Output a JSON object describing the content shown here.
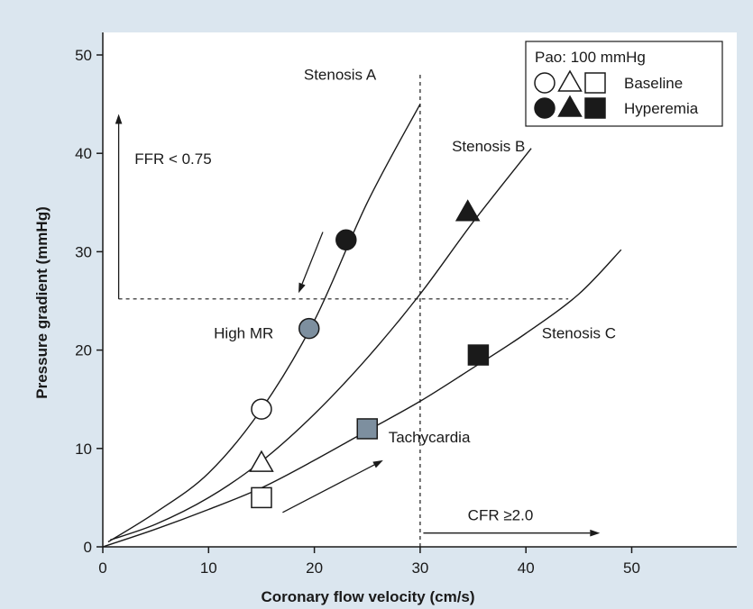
{
  "chart_data": {
    "type": "scatter",
    "xlabel": "Coronary flow velocity (cm/s)",
    "ylabel": "Pressure gradient (mmHg)",
    "xlim": [
      0,
      60
    ],
    "ylim": [
      0,
      55
    ],
    "x_ticks": [
      0,
      10,
      20,
      30,
      40,
      50
    ],
    "y_ticks": [
      0,
      10,
      20,
      30,
      40,
      50
    ],
    "grid": false,
    "legend": {
      "placement": "top-right",
      "title": "Pao: 100 mmHg",
      "entries": [
        {
          "label": "Baseline",
          "fill": "open",
          "markers": [
            "circle",
            "triangle",
            "square"
          ]
        },
        {
          "label": "Hyperemia",
          "fill": "filled",
          "markers": [
            "circle",
            "triangle",
            "square"
          ]
        }
      ]
    },
    "series": [
      {
        "name": "Stenosis A",
        "marker": "circle",
        "curve_x": [
          0.5,
          5,
          10,
          15,
          20,
          25,
          30
        ],
        "curve_y": [
          0.5,
          3.5,
          7.5,
          14,
          23,
          35,
          45
        ],
        "points": [
          {
            "x": 15,
            "y": 14,
            "state": "Baseline"
          },
          {
            "x": 19.5,
            "y": 22.2,
            "state": "High MR"
          },
          {
            "x": 23,
            "y": 31.2,
            "state": "Hyperemia"
          }
        ]
      },
      {
        "name": "Stenosis B",
        "marker": "triangle",
        "curve_x": [
          0.7,
          5,
          10,
          15,
          20,
          25,
          30,
          35,
          40.5
        ],
        "curve_y": [
          0.7,
          2.3,
          5,
          8.7,
          13.5,
          19.2,
          25.7,
          33,
          40.5
        ],
        "points": [
          {
            "x": 15,
            "y": 8.5,
            "state": "Baseline"
          },
          {
            "x": 34.5,
            "y": 34,
            "state": "Hyperemia"
          }
        ]
      },
      {
        "name": "Stenosis C",
        "marker": "square",
        "curve_x": [
          0,
          5,
          10,
          15,
          20,
          25,
          30,
          35,
          40,
          45,
          49
        ],
        "curve_y": [
          0,
          1.8,
          3.8,
          6,
          8.8,
          11.8,
          14.8,
          18.2,
          21.7,
          25.7,
          30.2
        ],
        "points": [
          {
            "x": 15,
            "y": 5,
            "state": "Baseline"
          },
          {
            "x": 25,
            "y": 12,
            "state": "Tachycardia"
          },
          {
            "x": 35.5,
            "y": 19.5,
            "state": "Hyperemia"
          }
        ]
      }
    ],
    "reference_lines": [
      {
        "orientation": "horizontal",
        "value": 25.2,
        "from": 1.5,
        "to": 44,
        "style": "dashed"
      },
      {
        "orientation": "vertical",
        "value": 30,
        "from": 0,
        "to": 48,
        "style": "dashed"
      }
    ],
    "arrows": [
      {
        "x1": 1.5,
        "y1": 25.2,
        "x2": 1.5,
        "y2": 44
      },
      {
        "x1": 30.3,
        "y1": 1.4,
        "x2": 47,
        "y2": 1.4
      },
      {
        "x1": 20.8,
        "y1": 32,
        "x2": 18.5,
        "y2": 25.8
      },
      {
        "x1": 17,
        "y1": 3.5,
        "x2": 26.5,
        "y2": 8.8
      }
    ],
    "annotations": [
      {
        "text": "Stenosis A",
        "x": 19,
        "y": 47.5
      },
      {
        "text": "Stenosis B",
        "x": 33,
        "y": 40.2
      },
      {
        "text": "Stenosis C",
        "x": 41.5,
        "y": 21.2
      },
      {
        "text": "FFR < 0.75",
        "x": 3,
        "y": 38.9
      },
      {
        "text": "High MR",
        "x": 10.5,
        "y": 21.2
      },
      {
        "text": "Tachycardia",
        "x": 27,
        "y": 10.6
      },
      {
        "text": "CFR ≥2.0",
        "x": 34.5,
        "y": 2.7
      }
    ],
    "colors": {
      "background": "#dbe6ef",
      "plot_background": "#ffffff",
      "baseline_fill": "#ffffff",
      "hyperemia_fill": "#1a1a1a",
      "highlight_fill": "#7d8f9f",
      "line": "#1a1a1a"
    }
  }
}
